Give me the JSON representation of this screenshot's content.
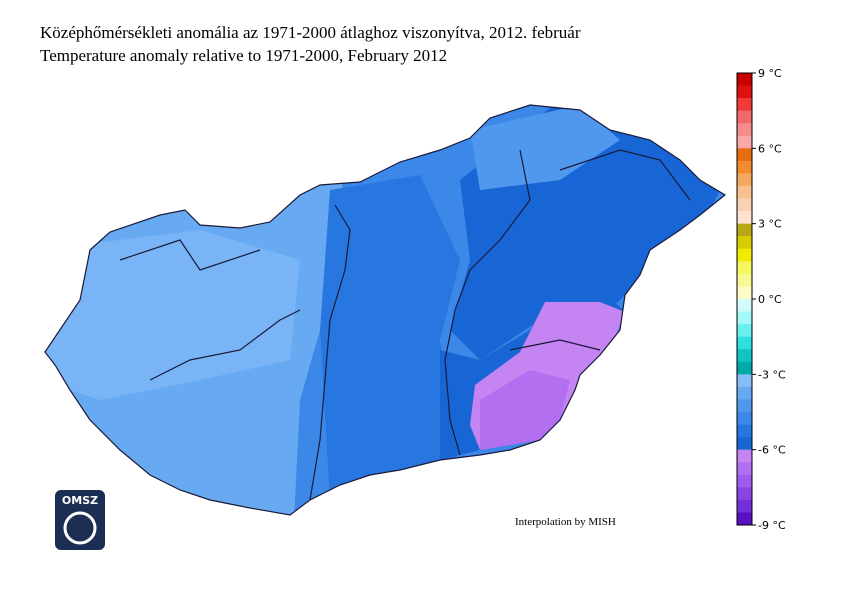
{
  "title": "Középhőmérsékleti anomália az 1971-2000 átlaghoz viszonyítva, 2012. február",
  "subtitle": "Temperature anomaly relative to 1971-2000, February 2012",
  "credit": "Interpolation by MISH",
  "logo": "OMSZ",
  "colorbar": {
    "clim": [
      -9,
      9
    ],
    "ticks": [
      {
        "value": 9,
        "label": "9 °C"
      },
      {
        "value": 6,
        "label": "6 °C"
      },
      {
        "value": 3,
        "label": "3 °C"
      },
      {
        "value": 0,
        "label": "0 °C"
      },
      {
        "value": -3,
        "label": "-3 °C"
      },
      {
        "value": -6,
        "label": "-6 °C"
      },
      {
        "value": -9,
        "label": "-9 °C"
      }
    ],
    "colors": [
      "#c80000",
      "#e01010",
      "#f03a3a",
      "#f06868",
      "#f48c8c",
      "#f8a8a8",
      "#e86c10",
      "#f08c30",
      "#f4a860",
      "#f8c090",
      "#fad2b2",
      "#fde2d2",
      "#b8a818",
      "#d8cc00",
      "#f0ec00",
      "#f6f660",
      "#f9f994",
      "#fcfcc4",
      "#d2fcfc",
      "#a4f8f8",
      "#6af0f0",
      "#30e0e0",
      "#10c4c4",
      "#00a8a8",
      "#86bcf8",
      "#68aaf2",
      "#5098ee",
      "#3c88e8",
      "#2876e0",
      "#1866d6",
      "#c484f2",
      "#b270f0",
      "#a05cee",
      "#8a44e6",
      "#7430d8",
      "#5a10c0"
    ]
  }
}
